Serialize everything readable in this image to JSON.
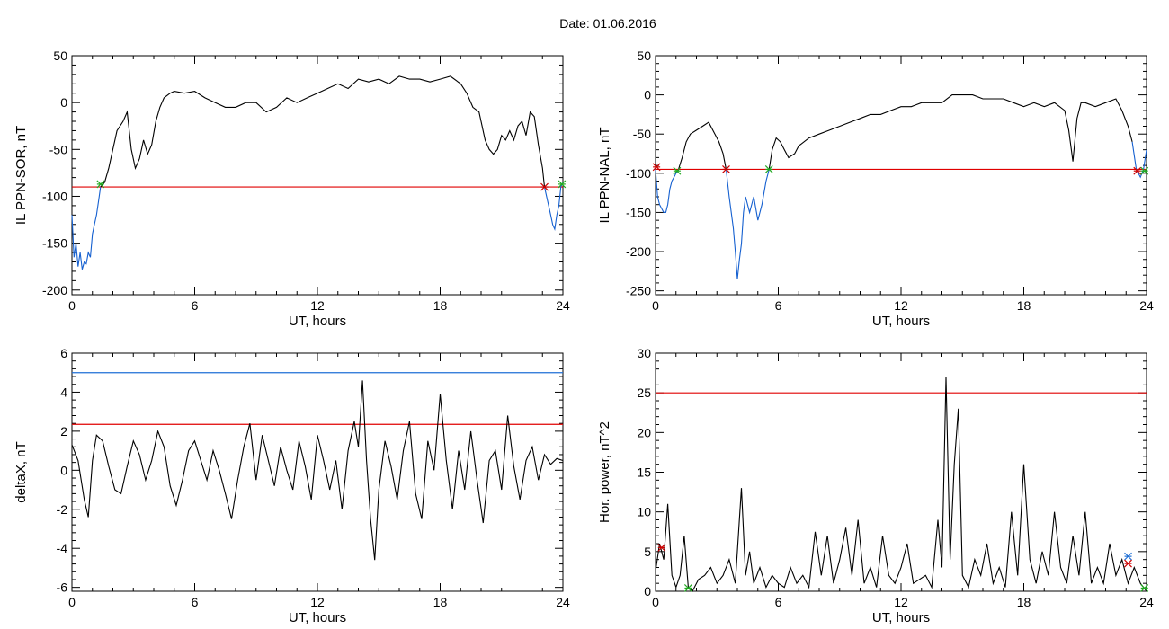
{
  "header": {
    "title": "Date:  01.06.2016"
  },
  "colors": {
    "threshold_red": "#e00000",
    "threshold_blue": "#1f6fd6",
    "trace_black": "#000000",
    "trace_blue": "#1560d0",
    "marker_green": "#22aa22",
    "marker_red": "#cc0000"
  },
  "chart_data": [
    {
      "id": "il-ppn-sor",
      "type": "line",
      "xlabel": "UT, hours",
      "ylabel": "IL PPN-SOR, nT",
      "xlim": [
        0,
        24
      ],
      "ylim": [
        -205,
        50
      ],
      "xticks": [
        0,
        6,
        12,
        18,
        24
      ],
      "yticks": [
        -200,
        -150,
        -100,
        -50,
        0,
        50
      ],
      "grid": false,
      "threshold_lines": [
        {
          "y": -90,
          "color": "#e00000"
        }
      ],
      "series": [
        {
          "color": "#1560d0",
          "x": [
            0,
            0.1,
            0.2,
            0.3,
            0.4,
            0.5,
            0.6,
            0.7,
            0.8,
            0.9,
            1.0,
            1.1,
            1.2,
            1.3,
            1.4
          ],
          "y": [
            -120,
            -165,
            -150,
            -175,
            -160,
            -178,
            -170,
            -172,
            -160,
            -165,
            -140,
            -130,
            -120,
            -105,
            -90
          ]
        },
        {
          "color": "#000000",
          "x": [
            1.4,
            1.6,
            1.8,
            2.0,
            2.2,
            2.5,
            2.7,
            2.9,
            3.1,
            3.3,
            3.5,
            3.7,
            3.9,
            4.1,
            4.3,
            4.5,
            4.8,
            5,
            5.5,
            6,
            6.5,
            7,
            7.5,
            8,
            8.5,
            9,
            9.5,
            10,
            10.5,
            11,
            11.5,
            12,
            12.5,
            13,
            13.5,
            14,
            14.5,
            15,
            15.5,
            16,
            16.5,
            17,
            17.5,
            18,
            18.5,
            19,
            19.3,
            19.6,
            19.9,
            20.2,
            20.4,
            20.6,
            20.8,
            21,
            21.2,
            21.4,
            21.6,
            21.8,
            22,
            22.2,
            22.4,
            22.6,
            22.8,
            23.0,
            23.1
          ],
          "y": [
            -90,
            -85,
            -70,
            -50,
            -30,
            -20,
            -10,
            -50,
            -70,
            -60,
            -40,
            -55,
            -45,
            -20,
            -5,
            5,
            10,
            12,
            10,
            12,
            5,
            0,
            -5,
            -5,
            0,
            0,
            -10,
            -5,
            5,
            0,
            5,
            10,
            15,
            20,
            15,
            25,
            22,
            25,
            20,
            28,
            25,
            25,
            22,
            25,
            28,
            20,
            10,
            -5,
            -10,
            -40,
            -50,
            -55,
            -50,
            -35,
            -40,
            -30,
            -40,
            -25,
            -20,
            -35,
            -10,
            -15,
            -45,
            -70,
            -90
          ]
        },
        {
          "color": "#1560d0",
          "x": [
            23.1,
            23.2,
            23.3,
            23.4,
            23.5,
            23.6,
            23.7,
            23.8,
            23.9,
            24
          ],
          "y": [
            -90,
            -100,
            -110,
            -120,
            -130,
            -135,
            -120,
            -110,
            -90,
            -85
          ]
        }
      ],
      "markers": [
        {
          "x": 1.4,
          "y": -87,
          "color": "#22aa22"
        },
        {
          "x": 23.1,
          "y": -90,
          "color": "#cc0000"
        },
        {
          "x": 23.95,
          "y": -87,
          "color": "#22aa22"
        }
      ]
    },
    {
      "id": "il-ppn-nal",
      "type": "line",
      "xlabel": "UT, hours",
      "ylabel": "IL PPN-NAL, nT",
      "xlim": [
        0,
        24
      ],
      "ylim": [
        -255,
        50
      ],
      "xticks": [
        0,
        6,
        12,
        18,
        24
      ],
      "yticks": [
        -250,
        -200,
        -150,
        -100,
        -50,
        0,
        50
      ],
      "grid": false,
      "threshold_lines": [
        {
          "y": -95,
          "color": "#e00000"
        }
      ],
      "series": [
        {
          "color": "#1560d0",
          "x": [
            0,
            0.1,
            0.2,
            0.3,
            0.4,
            0.5,
            0.6,
            0.7,
            0.8,
            0.9,
            1.0,
            1.1
          ],
          "y": [
            -95,
            -130,
            -140,
            -145,
            -150,
            -150,
            -140,
            -120,
            -110,
            -105,
            -100,
            -97
          ]
        },
        {
          "color": "#000000",
          "x": [
            1.1,
            1.3,
            1.5,
            1.7,
            2.0,
            2.3,
            2.6,
            2.9,
            3.1,
            3.3,
            3.45
          ],
          "y": [
            -97,
            -80,
            -60,
            -50,
            -45,
            -40,
            -35,
            -50,
            -60,
            -75,
            -95
          ]
        },
        {
          "color": "#1560d0",
          "x": [
            3.45,
            3.6,
            3.8,
            3.9,
            4.0,
            4.1,
            4.2,
            4.3,
            4.4,
            4.6,
            4.8,
            5.0,
            5.2,
            5.4,
            5.55
          ],
          "y": [
            -95,
            -130,
            -170,
            -200,
            -235,
            -210,
            -190,
            -150,
            -130,
            -150,
            -130,
            -160,
            -140,
            -110,
            -95
          ]
        },
        {
          "color": "#000000",
          "x": [
            5.55,
            5.7,
            5.9,
            6.1,
            6.3,
            6.5,
            6.8,
            7,
            7.5,
            8,
            8.5,
            9,
            9.5,
            10,
            10.5,
            11,
            11.5,
            12,
            12.5,
            13,
            13.5,
            14,
            14.5,
            15,
            15.5,
            16,
            16.5,
            17,
            17.5,
            18,
            18.5,
            19,
            19.5,
            20,
            20.2,
            20.4,
            20.6,
            20.8,
            21,
            21.5,
            22,
            22.5,
            22.8,
            23.1,
            23.3
          ],
          "y": [
            -95,
            -70,
            -55,
            -60,
            -70,
            -80,
            -75,
            -65,
            -55,
            -50,
            -45,
            -40,
            -35,
            -30,
            -25,
            -25,
            -20,
            -15,
            -15,
            -10,
            -10,
            -10,
            0,
            0,
            0,
            -5,
            -5,
            -5,
            -10,
            -15,
            -10,
            -15,
            -10,
            -20,
            -45,
            -85,
            -30,
            -10,
            -10,
            -15,
            -10,
            -5,
            -20,
            -40,
            -60
          ]
        },
        {
          "color": "#1560d0",
          "x": [
            23.3,
            23.5,
            23.7,
            23.85,
            24
          ],
          "y": [
            -60,
            -95,
            -105,
            -95,
            -70
          ]
        }
      ],
      "markers": [
        {
          "x": 0.05,
          "y": -92,
          "color": "#cc0000"
        },
        {
          "x": 1.05,
          "y": -97,
          "color": "#22aa22"
        },
        {
          "x": 3.45,
          "y": -95,
          "color": "#cc0000"
        },
        {
          "x": 5.55,
          "y": -95,
          "color": "#22aa22"
        },
        {
          "x": 23.55,
          "y": -97,
          "color": "#cc0000"
        },
        {
          "x": 23.9,
          "y": -97,
          "color": "#22aa22"
        }
      ]
    },
    {
      "id": "deltax",
      "type": "line",
      "xlabel": "UT, hours",
      "ylabel": "deltaX, nT",
      "xlim": [
        0,
        24
      ],
      "ylim": [
        -6.2,
        6
      ],
      "xticks": [
        0,
        6,
        12,
        18,
        24
      ],
      "yticks": [
        -6,
        -4,
        -2,
        0,
        2,
        4,
        6
      ],
      "grid": false,
      "threshold_lines": [
        {
          "y": 5.0,
          "color": "#1f6fd6"
        },
        {
          "y": 2.35,
          "color": "#e00000"
        }
      ],
      "series": [
        {
          "color": "#000000",
          "x": [
            0,
            0.3,
            0.6,
            0.8,
            1.0,
            1.2,
            1.5,
            1.8,
            2.1,
            2.4,
            2.7,
            3.0,
            3.3,
            3.6,
            3.9,
            4.2,
            4.5,
            4.8,
            5.1,
            5.4,
            5.7,
            6.0,
            6.3,
            6.6,
            6.9,
            7.2,
            7.5,
            7.8,
            8.1,
            8.4,
            8.7,
            9.0,
            9.3,
            9.6,
            9.9,
            10.2,
            10.5,
            10.8,
            11.1,
            11.4,
            11.7,
            12.0,
            12.3,
            12.6,
            12.9,
            13.2,
            13.5,
            13.8,
            14.0,
            14.2,
            14.4,
            14.6,
            14.8,
            15.0,
            15.3,
            15.6,
            15.9,
            16.2,
            16.5,
            16.8,
            17.1,
            17.4,
            17.7,
            18.0,
            18.3,
            18.6,
            18.9,
            19.2,
            19.5,
            19.8,
            20.1,
            20.4,
            20.7,
            21.0,
            21.3,
            21.6,
            21.9,
            22.2,
            22.5,
            22.8,
            23.1,
            23.4,
            23.7,
            24.0
          ],
          "y": [
            1.3,
            0.5,
            -1.5,
            -2.4,
            0.5,
            1.8,
            1.5,
            0.2,
            -1.0,
            -1.2,
            0.2,
            1.5,
            0.8,
            -0.5,
            0.5,
            2.0,
            1.2,
            -0.8,
            -1.8,
            -0.5,
            1.0,
            1.5,
            0.5,
            -0.5,
            1.0,
            0.0,
            -1.2,
            -2.5,
            -0.5,
            1.2,
            2.4,
            -0.5,
            1.8,
            0.5,
            -0.8,
            1.2,
            0.0,
            -1.0,
            1.5,
            0.2,
            -1.5,
            1.8,
            0.5,
            -1.0,
            0.5,
            -2.0,
            1.0,
            2.5,
            1.2,
            4.6,
            0.5,
            -2.5,
            -4.6,
            -1.0,
            1.5,
            0.2,
            -1.5,
            1.0,
            2.5,
            -1.2,
            -2.5,
            1.5,
            0.0,
            3.9,
            0.5,
            -2.0,
            1.0,
            -1.0,
            2.0,
            -0.5,
            -2.7,
            0.5,
            1.0,
            -1.0,
            2.8,
            0.2,
            -1.5,
            0.5,
            1.2,
            -0.5,
            0.8,
            0.3,
            0.6,
            0.5
          ]
        }
      ],
      "markers": []
    },
    {
      "id": "hor-power",
      "type": "line",
      "xlabel": "UT, hours",
      "ylabel": "Hor. power, nT^2",
      "xlim": [
        0,
        24
      ],
      "ylim": [
        0,
        30
      ],
      "xticks": [
        0,
        6,
        12,
        18,
        24
      ],
      "yticks": [
        0,
        5,
        10,
        15,
        20,
        25,
        30
      ],
      "grid": false,
      "threshold_lines": [
        {
          "y": 25,
          "color": "#e00000"
        }
      ],
      "series": [
        {
          "color": "#000000",
          "x": [
            0,
            0.2,
            0.4,
            0.6,
            0.8,
            1.0,
            1.2,
            1.4,
            1.6,
            1.8,
            2.1,
            2.4,
            2.7,
            3.0,
            3.3,
            3.6,
            3.9,
            4.2,
            4.4,
            4.6,
            4.8,
            5.1,
            5.4,
            5.7,
            6.0,
            6.3,
            6.6,
            6.9,
            7.2,
            7.5,
            7.8,
            8.1,
            8.4,
            8.7,
            9.0,
            9.3,
            9.6,
            9.9,
            10.2,
            10.5,
            10.8,
            11.1,
            11.4,
            11.7,
            12.0,
            12.3,
            12.6,
            12.9,
            13.2,
            13.5,
            13.8,
            14.0,
            14.2,
            14.4,
            14.6,
            14.8,
            15.0,
            15.3,
            15.6,
            15.9,
            16.2,
            16.5,
            16.8,
            17.1,
            17.4,
            17.7,
            18.0,
            18.3,
            18.6,
            18.9,
            19.2,
            19.5,
            19.8,
            20.1,
            20.4,
            20.7,
            21.0,
            21.3,
            21.6,
            21.9,
            22.2,
            22.5,
            22.8,
            23.1,
            23.4,
            23.7,
            24.0
          ],
          "y": [
            2.5,
            6,
            4,
            11,
            2,
            0.5,
            2,
            7,
            0.5,
            0,
            1.5,
            2,
            3,
            1,
            2,
            4,
            1,
            13,
            2,
            5,
            1,
            3,
            0.5,
            2,
            1,
            0.5,
            3,
            1,
            2,
            0.5,
            7.5,
            2,
            7,
            1,
            4,
            8,
            2,
            9,
            1,
            3,
            0.5,
            7,
            2,
            1,
            3,
            6,
            1,
            1.5,
            2,
            0.5,
            9,
            3,
            27,
            4,
            16,
            23,
            2,
            0.5,
            4,
            2,
            6,
            1,
            3,
            0.5,
            10,
            2,
            16,
            4,
            1,
            5,
            2,
            10,
            3,
            1,
            7,
            2,
            10,
            1,
            3,
            1,
            6,
            2,
            4,
            1,
            3,
            1,
            0
          ]
        }
      ],
      "markers": [
        {
          "x": 0.3,
          "y": 5.5,
          "color": "#cc0000"
        },
        {
          "x": 1.6,
          "y": 0.4,
          "color": "#22aa22"
        },
        {
          "x": 23.1,
          "y": 4.4,
          "color": "#1f6fd6"
        },
        {
          "x": 23.1,
          "y": 3.5,
          "color": "#cc0000"
        },
        {
          "x": 23.9,
          "y": 0.4,
          "color": "#22aa22"
        }
      ]
    }
  ]
}
